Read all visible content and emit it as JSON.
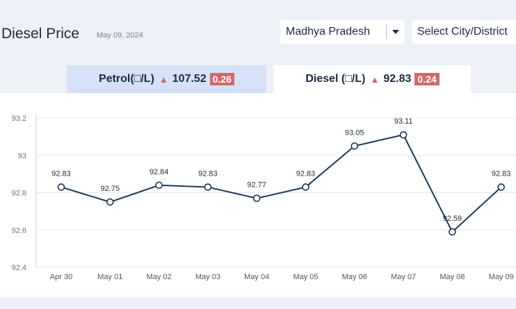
{
  "header": {
    "title": "Diesel Price",
    "date": "May 09, 2024",
    "state_value": "Madhya Pradesh",
    "city_placeholder": "Select City/District"
  },
  "tabs": {
    "petrol": {
      "label": "Petrol(□/L)",
      "price": "107.52",
      "change": "0.26"
    },
    "diesel": {
      "label": "Diesel (□/L)",
      "price": "92.83",
      "change": "0.24"
    }
  },
  "colors": {
    "line": "#1b3558",
    "increase": "#d06a6a",
    "active_tab": "#ffffff",
    "inactive_tab": "#d4e1f6"
  },
  "chart_data": {
    "type": "line",
    "categories": [
      "Apr 30",
      "May 01",
      "May 02",
      "May 03",
      "May 04",
      "May 05",
      "May 06",
      "May 07",
      "May 08",
      "May 09"
    ],
    "values": [
      92.83,
      92.75,
      92.84,
      92.83,
      92.77,
      92.83,
      93.05,
      93.11,
      92.59,
      92.83
    ],
    "labels": [
      "92.83",
      "92.75",
      "92.84",
      "92.83",
      "92.77",
      "92.83",
      "93.05",
      "93.11",
      "92.59",
      "92.83"
    ],
    "yticks": [
      "92.4",
      "92.6",
      "92.8",
      "93",
      "93.2"
    ],
    "ylim": [
      92.4,
      93.2
    ],
    "grid": true
  }
}
